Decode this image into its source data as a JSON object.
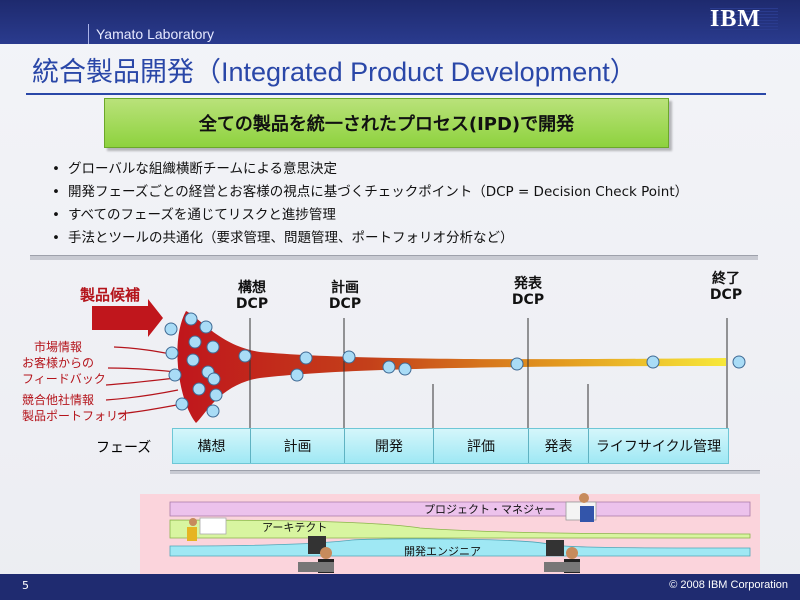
{
  "header": {
    "lab": "Yamato Laboratory",
    "logo": "IBM"
  },
  "title": "統合製品開発（Integrated Product Development）",
  "banner": "全ての製品を統一されたプロセス(IPD)で開発",
  "bullets": [
    "グローバルな組織横断チームによる意思決定",
    "開発フェーズごとの経営とお客様の視点に基づくチェックポイント（DCP = Decision Check Point）",
    "すべてのフェーズを通じてリスクと進捗管理",
    "手法とツールの共通化（要求管理、問題管理、ポートフォリオ分析など）"
  ],
  "funnel": {
    "candidates": "製品候補",
    "inputs": [
      "市場情報",
      "お客様からの",
      "フィードバック",
      "競合他社情報",
      "製品ポートフォリオ"
    ],
    "dcps": [
      {
        "line1": "構想",
        "line2": "DCP"
      },
      {
        "line1": "計画",
        "line2": "DCP"
      },
      {
        "line1": "発表",
        "line2": "DCP"
      },
      {
        "line1": "終了",
        "line2": "DCP"
      }
    ],
    "phase_label": "フェーズ",
    "phases": [
      "構想",
      "計画",
      "開発",
      "評価",
      "発表",
      "ライフサイクル管理"
    ]
  },
  "roles": {
    "pm": "プロジェクト・マネジャー",
    "architect": "アーキテクト",
    "engineer": "開発エンジニア"
  },
  "footer": {
    "page": "5",
    "copyright": "© 2008 IBM Corporation"
  },
  "colors": {
    "accent": "#2a47a8",
    "banner": "#8ed23e",
    "funnel": "#c0161c",
    "phase": "#9fe8f4"
  }
}
